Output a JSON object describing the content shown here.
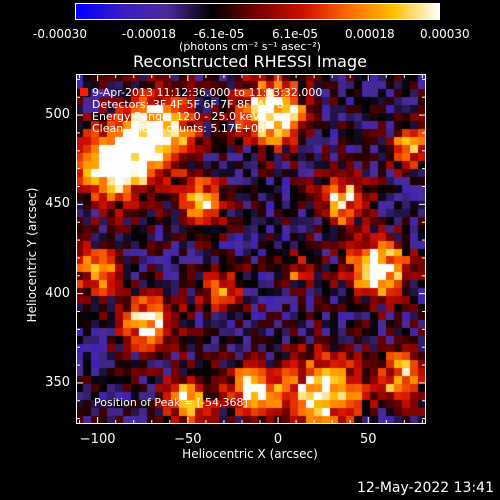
{
  "colorbar": {
    "ticks": [
      "-0.00030",
      "-0.00018",
      "-6.1e-05",
      "6.1e-05",
      "0.00018",
      "0.00030"
    ],
    "unit_label": "(photons cm⁻² s⁻¹ asec⁻²)"
  },
  "image": {
    "title": "Reconstructed RHESSI Image",
    "xlabel": "Heliocentric X (arcsec)",
    "ylabel": "Heliocentric Y (arcsec)",
    "xlim": [
      -112,
      82
    ],
    "ylim": [
      327,
      523
    ],
    "x_ticks": [
      "−100",
      "−50",
      "0",
      "50"
    ],
    "x_tick_values": [
      -100,
      -50,
      0,
      50
    ],
    "y_ticks": [
      "350",
      "400",
      "450",
      "500"
    ],
    "y_tick_values": [
      350,
      400,
      450,
      500
    ]
  },
  "overlay": {
    "line1": "9-Apr-2013 11:12:36.000 to 11:13:32.000",
    "line2": "Detectors: 3F 4F 5F 6F 7F 8F, Att 0",
    "line3": "Energy Range: 12.0 - 25.0 keV",
    "line4": "Clean    Total counts: 5.17E+03",
    "peak": "Position of Peak = [-54,368]"
  },
  "timestamp": "12-May-2022 13:41",
  "colors": {
    "colormap": [
      "#0000ff",
      "#3b1cc4",
      "#4b2c9c",
      "#000000",
      "#7a0000",
      "#d01000",
      "#ff6a00",
      "#ffc000",
      "#ffffff"
    ]
  }
}
